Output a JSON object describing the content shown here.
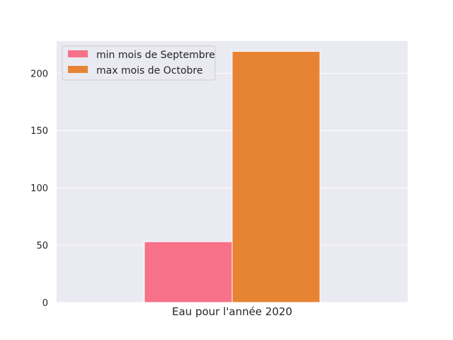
{
  "chart_data": {
    "type": "bar",
    "categories": [
      "Eau pour l'année 2020"
    ],
    "series": [
      {
        "name": "min mois de Septembre",
        "values": [
          53
        ],
        "color": "#f77189"
      },
      {
        "name": "max mois de Octobre",
        "values": [
          219
        ],
        "color": "#e68434"
      }
    ],
    "title": "",
    "xlabel": "",
    "ylabel": "",
    "ylim": [
      0,
      228
    ],
    "yticks": [
      0,
      50,
      100,
      150,
      200
    ],
    "grid": true,
    "legend_position": "top-left",
    "background": "#eaeaf2"
  }
}
